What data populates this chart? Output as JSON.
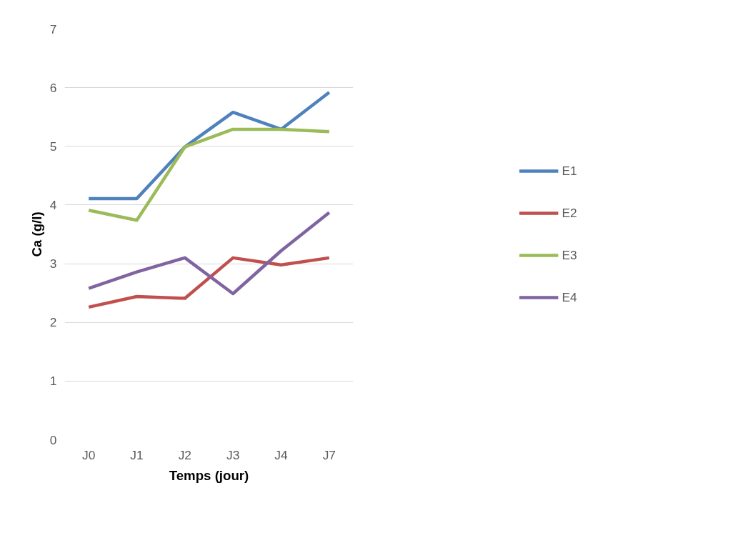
{
  "chart_data": {
    "type": "line",
    "xlabel": "Temps (jour)",
    "ylabel": "Ca (g/l)",
    "categories": [
      "J0",
      "J1",
      "J2",
      "J3",
      "J4",
      "J7"
    ],
    "series": [
      {
        "name": "E1",
        "color": "#4f81bd",
        "values": [
          4.11,
          4.11,
          4.99,
          5.58,
          5.29,
          5.92
        ]
      },
      {
        "name": "E2",
        "color": "#c0504d",
        "values": [
          2.26,
          2.44,
          2.41,
          3.1,
          2.98,
          3.1
        ]
      },
      {
        "name": "E3",
        "color": "#9bbb59",
        "values": [
          3.91,
          3.74,
          4.99,
          5.29,
          5.29,
          5.25
        ]
      },
      {
        "name": "E4",
        "color": "#8064a2",
        "values": [
          2.58,
          2.86,
          3.1,
          2.49,
          3.22,
          3.87
        ]
      }
    ],
    "ylim": [
      0,
      7
    ],
    "yticks": [
      0,
      1,
      2,
      3,
      4,
      5,
      6,
      7
    ],
    "grid": "y",
    "legend": "right",
    "marker": "none",
    "line_style": "solid"
  }
}
